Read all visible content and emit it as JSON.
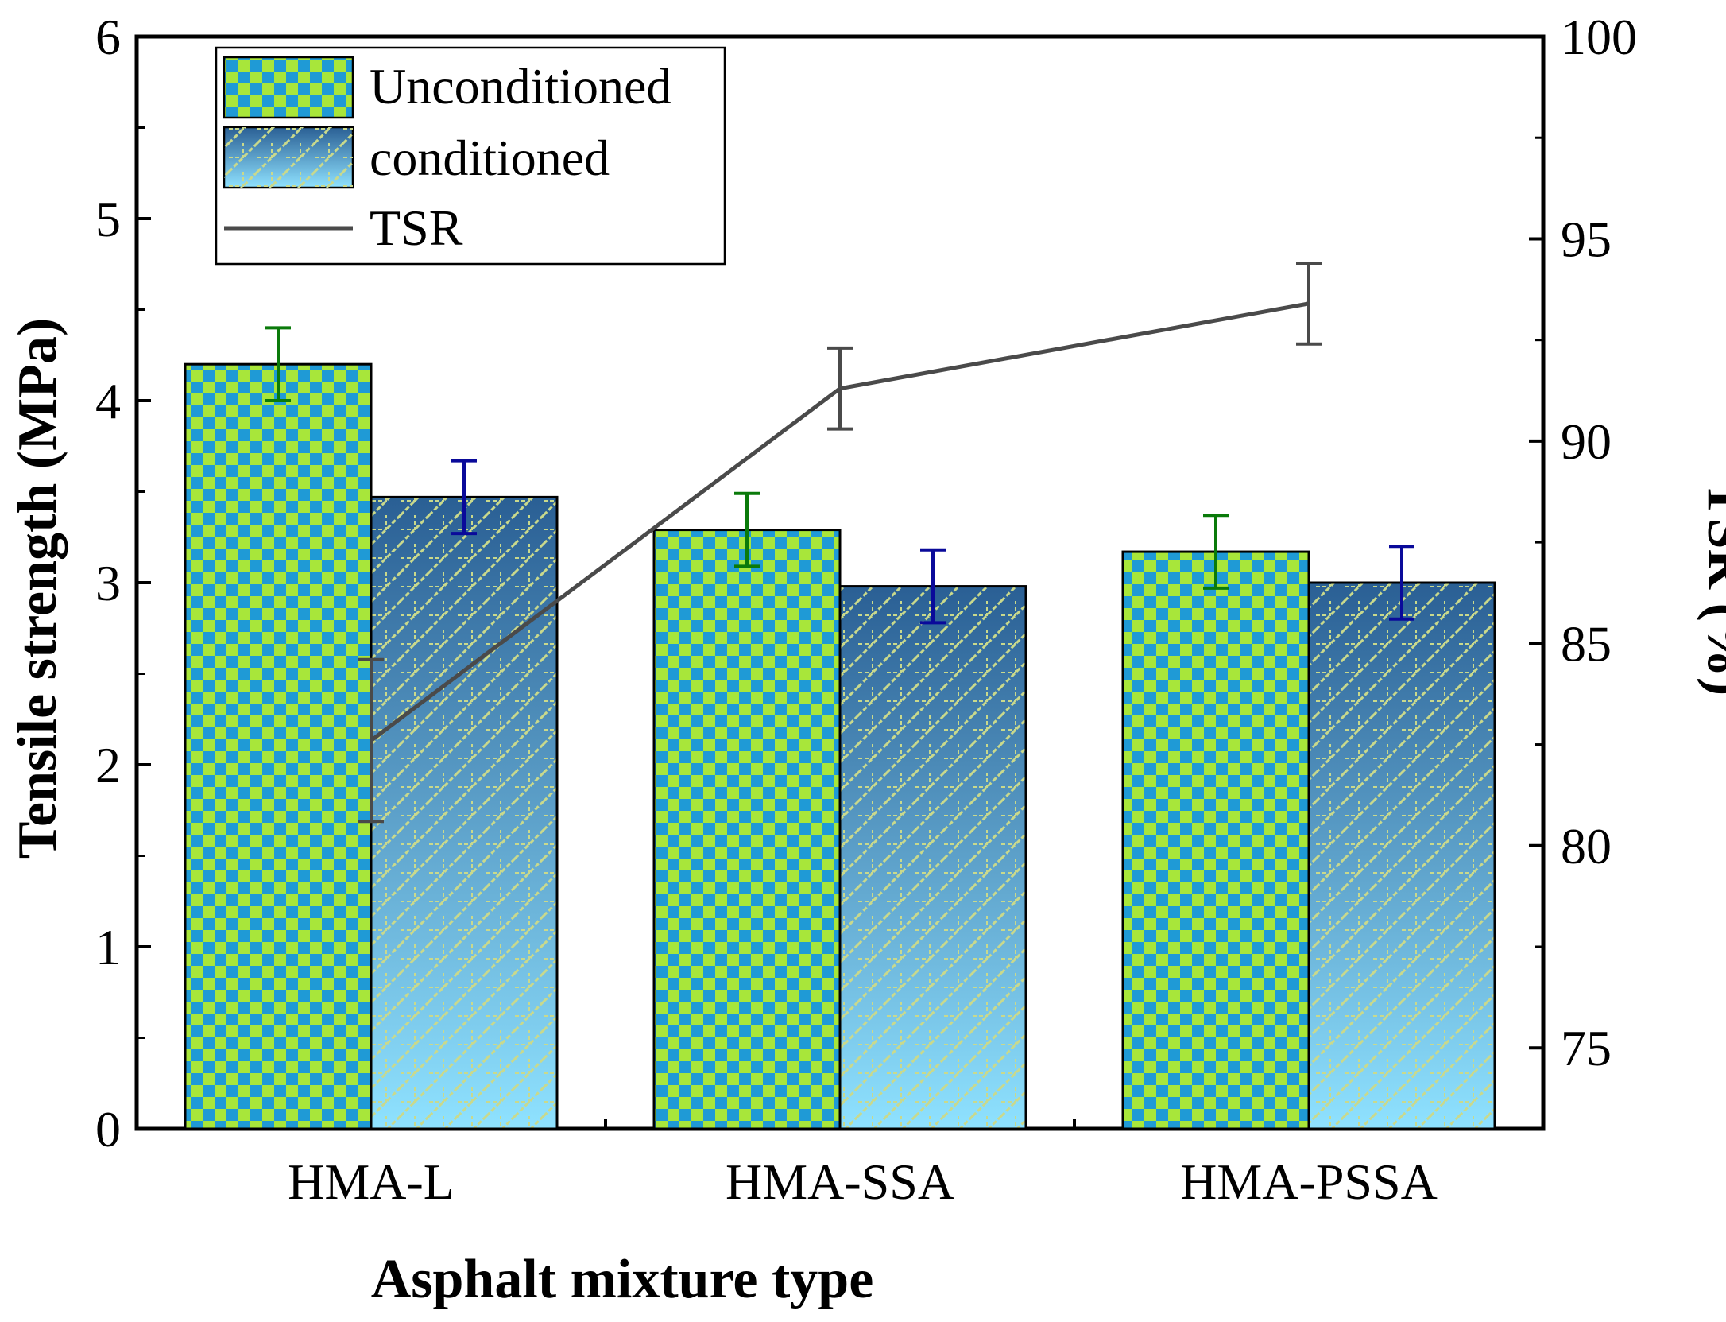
{
  "chart_data": {
    "type": "bar",
    "categories": [
      "HMA-L",
      "HMA-SSA",
      "HMA-PSSA"
    ],
    "series": [
      {
        "name": "Unconditioned",
        "axis": "left",
        "values": [
          4.2,
          3.29,
          3.17
        ],
        "errors": [
          0.2,
          0.2,
          0.2
        ],
        "error_color": "#0a7a0a"
      },
      {
        "name": "conditioned",
        "axis": "left",
        "values": [
          3.47,
          2.98,
          3.0
        ],
        "errors": [
          0.2,
          0.2,
          0.2
        ],
        "error_color": "#0a0a9a"
      },
      {
        "name": "TSR",
        "axis": "right",
        "type": "line",
        "values": [
          82.6,
          91.3,
          93.4
        ],
        "errors": [
          2.0,
          1.0,
          1.0
        ],
        "color": "#4a4a4a"
      }
    ],
    "xlabel": "Asphalt mixture type",
    "ylabel": "Tensile strength (MPa)",
    "y2label": "TSR (%)",
    "ylim": [
      0,
      6
    ],
    "yticks": [
      0,
      1,
      2,
      3,
      4,
      5,
      6
    ],
    "y2lim": [
      73,
      100
    ],
    "y2ticks": [
      75,
      80,
      85,
      90,
      95,
      100
    ],
    "legend_position": "top-left",
    "grid": false
  }
}
